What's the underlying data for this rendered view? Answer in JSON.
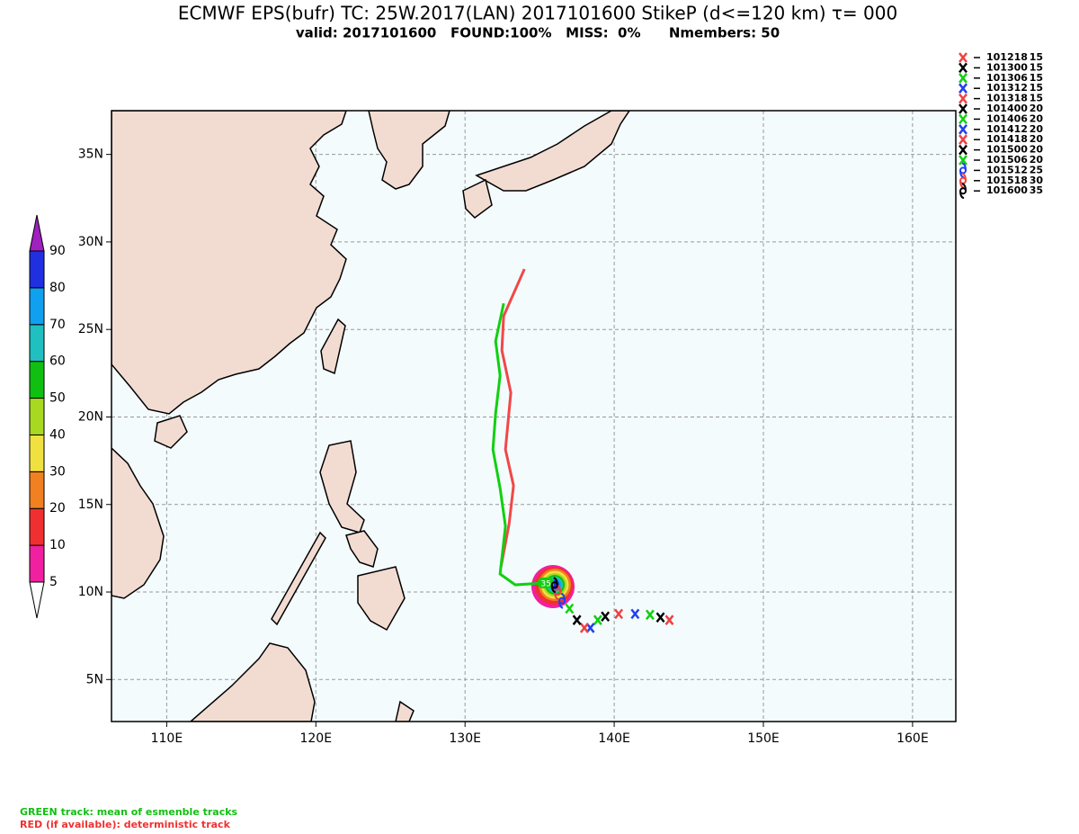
{
  "header": {
    "title": "ECMWF EPS(bufr) TC: 25W.2017(LAN) 2017101600 StikeP (d<=120 km)  τ= 000",
    "subtitle": "valid: 2017101600   FOUND:100%   MISS:  0%      Nmembers: 50"
  },
  "map": {
    "xlim": [
      106.3,
      162.9
    ],
    "ylim": [
      2.6,
      37.5
    ],
    "xticks": [
      {
        "value": 110,
        "label": "110E"
      },
      {
        "value": 120,
        "label": "120E"
      },
      {
        "value": 130,
        "label": "130E"
      },
      {
        "value": 140,
        "label": "140E"
      },
      {
        "value": 150,
        "label": "150E"
      },
      {
        "value": 160,
        "label": "160E"
      }
    ],
    "yticks": [
      {
        "value": 5,
        "label": "5N"
      },
      {
        "value": 10,
        "label": "10N"
      },
      {
        "value": 15,
        "label": "15N"
      },
      {
        "value": 20,
        "label": "20N"
      },
      {
        "value": 25,
        "label": "25N"
      },
      {
        "value": 30,
        "label": "30N"
      },
      {
        "value": 35,
        "label": "35N"
      }
    ],
    "grid": true
  },
  "colorbar": {
    "levels": [
      5,
      10,
      20,
      30,
      40,
      50,
      60,
      70,
      80,
      90
    ],
    "colors": [
      "#f020a0",
      "#f03030",
      "#f08020",
      "#f0e040",
      "#a8d820",
      "#10c010",
      "#20c0c0",
      "#10a0f0",
      "#2030e0"
    ],
    "over_color": "#a020c0",
    "under_color": "#ffffff"
  },
  "best_track": [
    {
      "time": "101218",
      "wind": 15,
      "lon": 143.7,
      "lat": 8.4,
      "color": "#f04040",
      "marker": "cross"
    },
    {
      "time": "101300",
      "wind": 15,
      "lon": 143.1,
      "lat": 8.55,
      "color": "#000000",
      "marker": "cross"
    },
    {
      "time": "101306",
      "wind": 15,
      "lon": 142.4,
      "lat": 8.7,
      "color": "#10d010",
      "marker": "cross"
    },
    {
      "time": "101312",
      "wind": 15,
      "lon": 141.4,
      "lat": 8.75,
      "color": "#2040f0",
      "marker": "cross"
    },
    {
      "time": "101318",
      "wind": 15,
      "lon": 140.3,
      "lat": 8.75,
      "color": "#f04040",
      "marker": "cross"
    },
    {
      "time": "101400",
      "wind": 20,
      "lon": 139.4,
      "lat": 8.6,
      "color": "#000000",
      "marker": "cross"
    },
    {
      "time": "101406",
      "wind": 20,
      "lon": 138.9,
      "lat": 8.4,
      "color": "#10d010",
      "marker": "cross"
    },
    {
      "time": "101412",
      "wind": 20,
      "lon": 138.4,
      "lat": 7.95,
      "color": "#2040f0",
      "marker": "cross"
    },
    {
      "time": "101418",
      "wind": 20,
      "lon": 138.0,
      "lat": 7.95,
      "color": "#f04040",
      "marker": "cross"
    },
    {
      "time": "101500",
      "wind": 20,
      "lon": 137.5,
      "lat": 8.4,
      "color": "#000000",
      "marker": "cross"
    },
    {
      "time": "101506",
      "wind": 20,
      "lon": 137.0,
      "lat": 9.05,
      "color": "#10d010",
      "marker": "cross"
    },
    {
      "time": "101512",
      "wind": 25,
      "lon": 136.5,
      "lat": 9.5,
      "color": "#2040f0",
      "marker": "cyclone"
    },
    {
      "time": "101518",
      "wind": 30,
      "lon": 136.2,
      "lat": 10.0,
      "color": "#f04040",
      "marker": "cyclone"
    },
    {
      "time": "101600",
      "wind": 35,
      "lon": 136.0,
      "lat": 10.4,
      "color": "#000000",
      "marker": "cyclone"
    }
  ],
  "mean_track": {
    "color": "#10d010",
    "intensity": 35,
    "lon": [
      135.42,
      133.37,
      132.35,
      132.71,
      132.35,
      131.87,
      132.05,
      132.35,
      132.05,
      132.59
    ],
    "lat": [
      10.52,
      10.41,
      11.03,
      13.76,
      15.93,
      18.14,
      20.21,
      22.37,
      24.33,
      26.49
    ]
  },
  "deterministic_track": {
    "color": "#f04848",
    "lon": [
      132.41,
      132.95,
      133.25,
      132.71,
      133.07,
      132.47,
      132.59,
      133.98
    ],
    "lat": [
      11.44,
      13.87,
      16.08,
      18.14,
      21.39,
      23.81,
      25.77,
      28.45
    ]
  },
  "footer": {
    "green_note": "GREEN track: mean of esmenble tracks",
    "red_note": "RED (if available): deterministic track"
  }
}
